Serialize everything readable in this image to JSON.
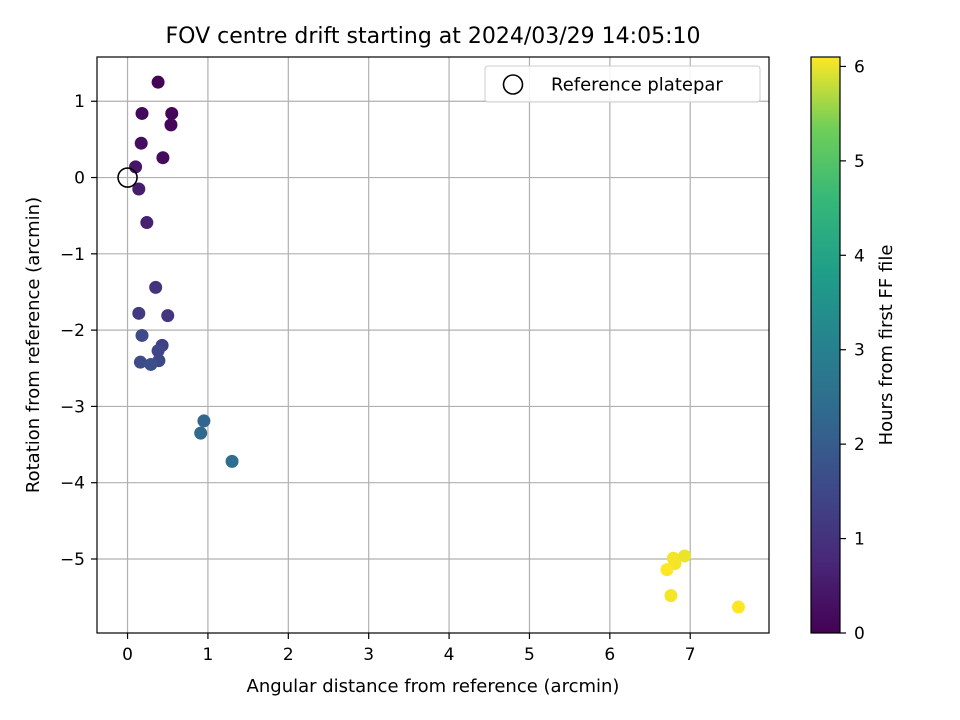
{
  "chart_data": {
    "type": "scatter",
    "title": "FOV centre drift starting at 2024/03/29 14:05:10",
    "xlabel": "Angular distance from reference (arcmin)",
    "ylabel": "Rotation from reference (arcmin)",
    "xlim": [
      -0.38,
      7.98
    ],
    "ylim": [
      -5.97,
      1.58
    ],
    "xticks": [
      0,
      1,
      2,
      3,
      4,
      5,
      6,
      7
    ],
    "yticks": [
      1,
      0,
      -1,
      -2,
      -3,
      -4,
      -5
    ],
    "xtick_labels": [
      "0",
      "1",
      "2",
      "3",
      "4",
      "5",
      "6",
      "7"
    ],
    "ytick_labels": [
      "1",
      "0",
      "−1",
      "−2",
      "−3",
      "−4",
      "−5"
    ],
    "grid": true,
    "legend": {
      "position": "top-right",
      "entries": [
        {
          "label": "Reference platepar",
          "marker": "open-circle"
        }
      ]
    },
    "reference_point": {
      "x": 0.0,
      "y": 0.0
    },
    "colorbar": {
      "label": "Hours from first FF file",
      "range": [
        0,
        6.1
      ],
      "ticks": [
        0,
        1,
        2,
        3,
        4,
        5,
        6
      ],
      "tick_labels": [
        "0",
        "1",
        "2",
        "3",
        "4",
        "5",
        "6"
      ],
      "colormap": "viridis"
    },
    "points": [
      {
        "x": 0.38,
        "y": 1.25,
        "hours": 0.05
      },
      {
        "x": 0.18,
        "y": 0.84,
        "hours": 0.15
      },
      {
        "x": 0.55,
        "y": 0.84,
        "hours": 0.1
      },
      {
        "x": 0.54,
        "y": 0.69,
        "hours": 0.12
      },
      {
        "x": 0.17,
        "y": 0.45,
        "hours": 0.25
      },
      {
        "x": 0.44,
        "y": 0.26,
        "hours": 0.2
      },
      {
        "x": 0.1,
        "y": 0.14,
        "hours": 0.4
      },
      {
        "x": 0.14,
        "y": -0.15,
        "hours": 0.55
      },
      {
        "x": 0.24,
        "y": -0.59,
        "hours": 0.6
      },
      {
        "x": 0.35,
        "y": -1.44,
        "hours": 1.05
      },
      {
        "x": 0.14,
        "y": -1.78,
        "hours": 1.15
      },
      {
        "x": 0.5,
        "y": -1.81,
        "hours": 1.1
      },
      {
        "x": 0.18,
        "y": -2.07,
        "hours": 1.55
      },
      {
        "x": 0.43,
        "y": -2.2,
        "hours": 1.35
      },
      {
        "x": 0.38,
        "y": -2.27,
        "hours": 1.45
      },
      {
        "x": 0.16,
        "y": -2.42,
        "hours": 1.6
      },
      {
        "x": 0.39,
        "y": -2.4,
        "hours": 1.5
      },
      {
        "x": 0.29,
        "y": -2.45,
        "hours": 1.7
      },
      {
        "x": 0.95,
        "y": -3.19,
        "hours": 2.25
      },
      {
        "x": 0.91,
        "y": -3.35,
        "hours": 2.35
      },
      {
        "x": 1.3,
        "y": -3.72,
        "hours": 2.45
      },
      {
        "x": 6.79,
        "y": -4.99,
        "hours": 6.05
      },
      {
        "x": 6.93,
        "y": -4.96,
        "hours": 6.0
      },
      {
        "x": 6.81,
        "y": -5.06,
        "hours": 6.05
      },
      {
        "x": 6.71,
        "y": -5.14,
        "hours": 6.1
      },
      {
        "x": 6.76,
        "y": -5.48,
        "hours": 6.05
      },
      {
        "x": 7.6,
        "y": -5.63,
        "hours": 6.1
      }
    ]
  }
}
